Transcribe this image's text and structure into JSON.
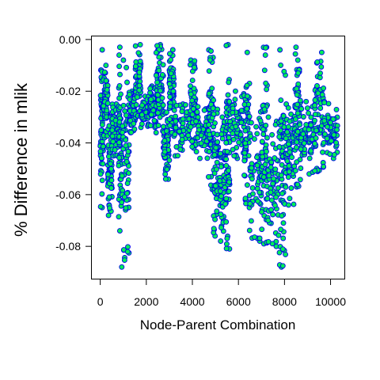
{
  "chart_data": {
    "type": "scatter",
    "title": "",
    "xlabel": "Node-Parent Combination",
    "ylabel": "% Difference in mlik",
    "xlim": [
      -400,
      10600
    ],
    "ylim": [
      -0.0925,
      0.0015
    ],
    "x_ticks": [
      0,
      2000,
      4000,
      6000,
      8000,
      10000
    ],
    "x_tick_labels": [
      "0",
      "2000",
      "4000",
      "6000",
      "8000",
      "10000"
    ],
    "y_ticks": [
      0.0,
      -0.02,
      -0.04,
      -0.06,
      -0.08
    ],
    "y_tick_labels": [
      "0.00",
      "-0.02",
      "-0.04",
      "-0.06",
      "-0.08"
    ],
    "grid": false,
    "legend": "none",
    "point_fill": "#00ee55",
    "point_stroke": "#0000ee",
    "point_count": 10240,
    "clusters": [
      {
        "x": [
          0,
          130
        ],
        "y": [
          -0.004,
          -0.065
        ]
      },
      {
        "x": [
          130,
          330
        ],
        "y": [
          -0.01,
          -0.038
        ]
      },
      {
        "x": [
          330,
          520
        ],
        "y": [
          -0.03,
          -0.068
        ]
      },
      {
        "x": [
          520,
          800
        ],
        "y": [
          -0.025,
          -0.045
        ]
      },
      {
        "x": [
          800,
          930
        ],
        "y": [
          -0.003,
          -0.074
        ]
      },
      {
        "x": [
          930,
          1260
        ],
        "y": [
          -0.008,
          -0.088
        ]
      },
      {
        "x": [
          1260,
          1520
        ],
        "y": [
          -0.02,
          -0.036
        ]
      },
      {
        "x": [
          1520,
          1760
        ],
        "y": [
          -0.002,
          -0.03
        ]
      },
      {
        "x": [
          1760,
          2160
        ],
        "y": [
          -0.022,
          -0.034
        ]
      },
      {
        "x": [
          2160,
          2420
        ],
        "y": [
          -0.018,
          -0.034
        ]
      },
      {
        "x": [
          2420,
          2740
        ],
        "y": [
          -0.002,
          -0.036
        ]
      },
      {
        "x": [
          2740,
          3000
        ],
        "y": [
          -0.028,
          -0.054
        ]
      },
      {
        "x": [
          3000,
          3200
        ],
        "y": [
          -0.004,
          -0.036
        ]
      },
      {
        "x": [
          3200,
          3900
        ],
        "y": [
          -0.025,
          -0.045
        ]
      },
      {
        "x": [
          3900,
          4150
        ],
        "y": [
          -0.008,
          -0.042
        ]
      },
      {
        "x": [
          4150,
          4700
        ],
        "y": [
          -0.026,
          -0.046
        ]
      },
      {
        "x": [
          4700,
          4920
        ],
        "y": [
          -0.004,
          -0.058
        ]
      },
      {
        "x": [
          4920,
          5180
        ],
        "y": [
          -0.027,
          -0.076
        ]
      },
      {
        "x": [
          5180,
          5460
        ],
        "y": [
          -0.03,
          -0.078
        ]
      },
      {
        "x": [
          5460,
          5620
        ],
        "y": [
          -0.002,
          -0.081
        ]
      },
      {
        "x": [
          5620,
          6250
        ],
        "y": [
          -0.02,
          -0.046
        ]
      },
      {
        "x": [
          6250,
          6480
        ],
        "y": [
          -0.005,
          -0.065
        ]
      },
      {
        "x": [
          6480,
          7000
        ],
        "y": [
          -0.028,
          -0.078
        ]
      },
      {
        "x": [
          7000,
          7250
        ],
        "y": [
          -0.003,
          -0.079
        ]
      },
      {
        "x": [
          7250,
          7750
        ],
        "y": [
          -0.03,
          -0.08
        ]
      },
      {
        "x": [
          7750,
          8050
        ],
        "y": [
          -0.004,
          -0.088
        ]
      },
      {
        "x": [
          8050,
          8450
        ],
        "y": [
          -0.025,
          -0.064
        ]
      },
      {
        "x": [
          8450,
          8700
        ],
        "y": [
          -0.003,
          -0.057
        ]
      },
      {
        "x": [
          8700,
          9300
        ],
        "y": [
          -0.024,
          -0.052
        ]
      },
      {
        "x": [
          9300,
          9700
        ],
        "y": [
          -0.005,
          -0.051
        ]
      },
      {
        "x": [
          9700,
          10300
        ],
        "y": [
          -0.024,
          -0.046
        ]
      }
    ]
  }
}
